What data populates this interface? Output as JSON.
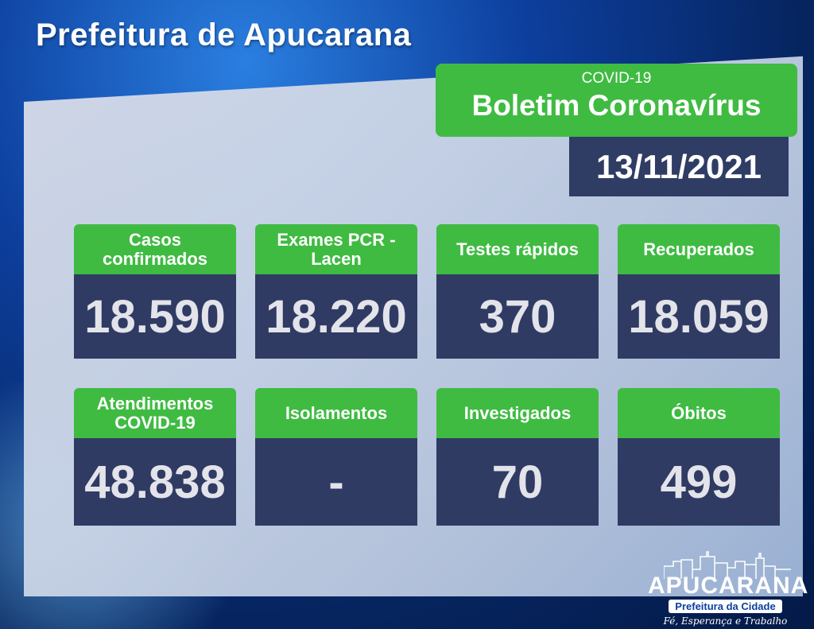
{
  "header": {
    "title": "Prefeitura de Apucarana"
  },
  "banner": {
    "subtitle": "COVID-19",
    "title": "Boletim Coronavírus",
    "date": "13/11/2021"
  },
  "cards": [
    {
      "label": "Casos confirmados",
      "value": "18.590"
    },
    {
      "label": "Exames PCR - Lacen",
      "value": "18.220"
    },
    {
      "label": "Testes rápidos",
      "value": "370"
    },
    {
      "label": "Recuperados",
      "value": "18.059"
    },
    {
      "label": "Atendimentos COVID-19",
      "value": "48.838"
    },
    {
      "label": "Isolamentos",
      "value": "-"
    },
    {
      "label": "Investigados",
      "value": "70"
    },
    {
      "label": "Óbitos",
      "value": "499"
    }
  ],
  "logo": {
    "name": "APUCARANA",
    "subtitle": "Prefeitura da Cidade",
    "motto": "Fé, Esperança e Trabalho"
  },
  "colors": {
    "green": "#3fbb42",
    "navy": "#2f3b63",
    "background": "#0d3f9e"
  }
}
